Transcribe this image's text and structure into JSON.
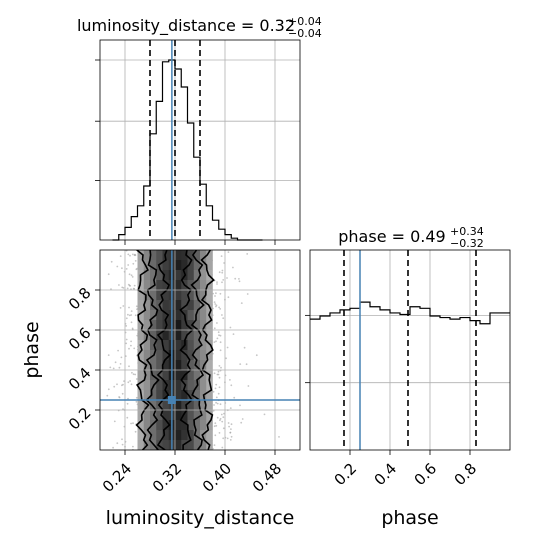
{
  "chart_data": [
    {
      "type": "histogram",
      "panel": "top-left",
      "parameter": "luminosity_distance",
      "title": {
        "prefix": "luminosity_distance = ",
        "median": "0.32",
        "plus": "+0.04",
        "minus": "−0.04"
      },
      "bins": [
        0.22,
        0.23,
        0.24,
        0.25,
        0.26,
        0.27,
        0.28,
        0.29,
        0.3,
        0.31,
        0.32,
        0.33,
        0.34,
        0.35,
        0.36,
        0.37,
        0.38,
        0.39,
        0.4,
        0.41,
        0.42,
        0.43,
        0.44,
        0.45,
        0.46
      ],
      "counts": [
        0.0,
        0.03,
        0.07,
        0.13,
        0.19,
        0.3,
        0.59,
        0.77,
        0.99,
        1.0,
        0.95,
        0.85,
        0.65,
        0.46,
        0.31,
        0.19,
        0.11,
        0.06,
        0.03,
        0.01,
        0.0,
        0.0,
        0.0,
        0.0
      ],
      "xlim": [
        0.2,
        0.52
      ],
      "quantiles": [
        0.28,
        0.32,
        0.36
      ],
      "truth": 0.315,
      "grid": true
    },
    {
      "type": "heatmap",
      "panel": "bottom-left",
      "x_param": "luminosity_distance",
      "y_param": "phase",
      "xlabel": "luminosity_distance",
      "ylabel": "phase",
      "xlim": [
        0.2,
        0.52
      ],
      "ylim": [
        0.0,
        1.0
      ],
      "xticks": [
        "0.24",
        "0.32",
        "0.40",
        "0.48"
      ],
      "xtick_values": [
        0.24,
        0.32,
        0.4,
        0.48
      ],
      "yticks": [
        "0.2",
        "0.4",
        "0.6",
        "0.8"
      ],
      "ytick_values": [
        0.2,
        0.4,
        0.6,
        0.8
      ],
      "truth": {
        "x": 0.315,
        "y": 0.25
      },
      "density_x_mean": 0.32,
      "density_x_sd": 0.038,
      "grid": true
    },
    {
      "type": "histogram",
      "panel": "bottom-right",
      "parameter": "phase",
      "title": {
        "prefix": "phase = ",
        "median": "0.49",
        "plus": "+0.34",
        "minus": "−0.32"
      },
      "xlabel": "phase",
      "bins": [
        0.0,
        0.05,
        0.1,
        0.15,
        0.2,
        0.25,
        0.3,
        0.35,
        0.4,
        0.45,
        0.5,
        0.55,
        0.6,
        0.65,
        0.7,
        0.75,
        0.8,
        0.85,
        0.9,
        0.95,
        1.0
      ],
      "counts": [
        0.85,
        0.87,
        0.89,
        0.91,
        0.92,
        0.96,
        0.93,
        0.91,
        0.89,
        0.88,
        0.93,
        0.92,
        0.87,
        0.86,
        0.85,
        0.86,
        0.84,
        0.82,
        0.89,
        0.89
      ],
      "xlim": [
        0.0,
        1.0
      ],
      "xticks": [
        "0.2",
        "0.4",
        "0.6",
        "0.8"
      ],
      "xtick_values": [
        0.2,
        0.4,
        0.6,
        0.8
      ],
      "quantiles": [
        0.17,
        0.49,
        0.83
      ],
      "truth": 0.25,
      "grid": true
    }
  ],
  "colors": {
    "truth": "#4682b4",
    "line": "#000000",
    "grid": "#b0b0b0",
    "samples": "#a0a0a0"
  }
}
